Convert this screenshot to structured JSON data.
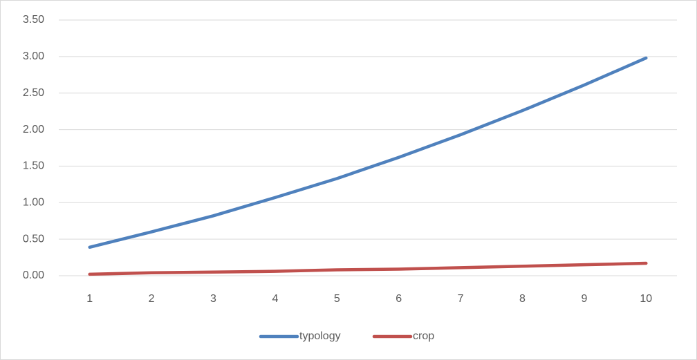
{
  "chart_data": {
    "type": "line",
    "categories": [
      "1",
      "2",
      "3",
      "4",
      "5",
      "6",
      "7",
      "8",
      "9",
      "10"
    ],
    "series": [
      {
        "name": "typology",
        "color": "#4f81bd",
        "values": [
          0.39,
          0.6,
          0.82,
          1.07,
          1.33,
          1.62,
          1.93,
          2.26,
          2.61,
          2.98
        ]
      },
      {
        "name": "crop",
        "color": "#c0504d",
        "values": [
          0.02,
          0.04,
          0.05,
          0.06,
          0.08,
          0.09,
          0.11,
          0.13,
          0.15,
          0.17
        ]
      }
    ],
    "ylim": [
      0,
      3.5
    ],
    "yticks": [
      {
        "value": 0,
        "label": "0.00"
      },
      {
        "value": 0.5,
        "label": "0.50"
      },
      {
        "value": 1,
        "label": "1.00"
      },
      {
        "value": 1.5,
        "label": "1.50"
      },
      {
        "value": 2,
        "label": "2.00"
      },
      {
        "value": 2.5,
        "label": "2.50"
      },
      {
        "value": 3,
        "label": "3.00"
      },
      {
        "value": 3.5,
        "label": "3.50"
      }
    ],
    "grid": true,
    "legend": "bottom"
  }
}
